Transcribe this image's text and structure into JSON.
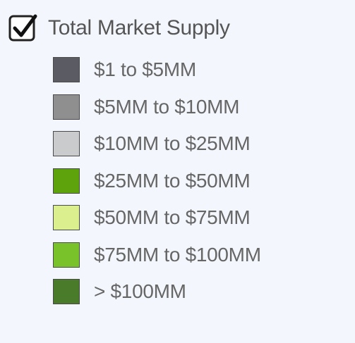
{
  "legend": {
    "title": "Total Market Supply",
    "checked": true,
    "items": [
      {
        "label": "$1 to $5MM",
        "color": "#5b5b63"
      },
      {
        "label": "$5MM to $10MM",
        "color": "#8f8f90"
      },
      {
        "label": "$10MM to $25MM",
        "color": "#c9cbcd"
      },
      {
        "label": "$25MM to $50MM",
        "color": "#5fa30c"
      },
      {
        "label": "$50MM to $75MM",
        "color": "#dcef8e"
      },
      {
        "label": "$75MM to $100MM",
        "color": "#7ac22a"
      },
      {
        "label": "> $100MM",
        "color": "#4a7b2b"
      }
    ]
  }
}
